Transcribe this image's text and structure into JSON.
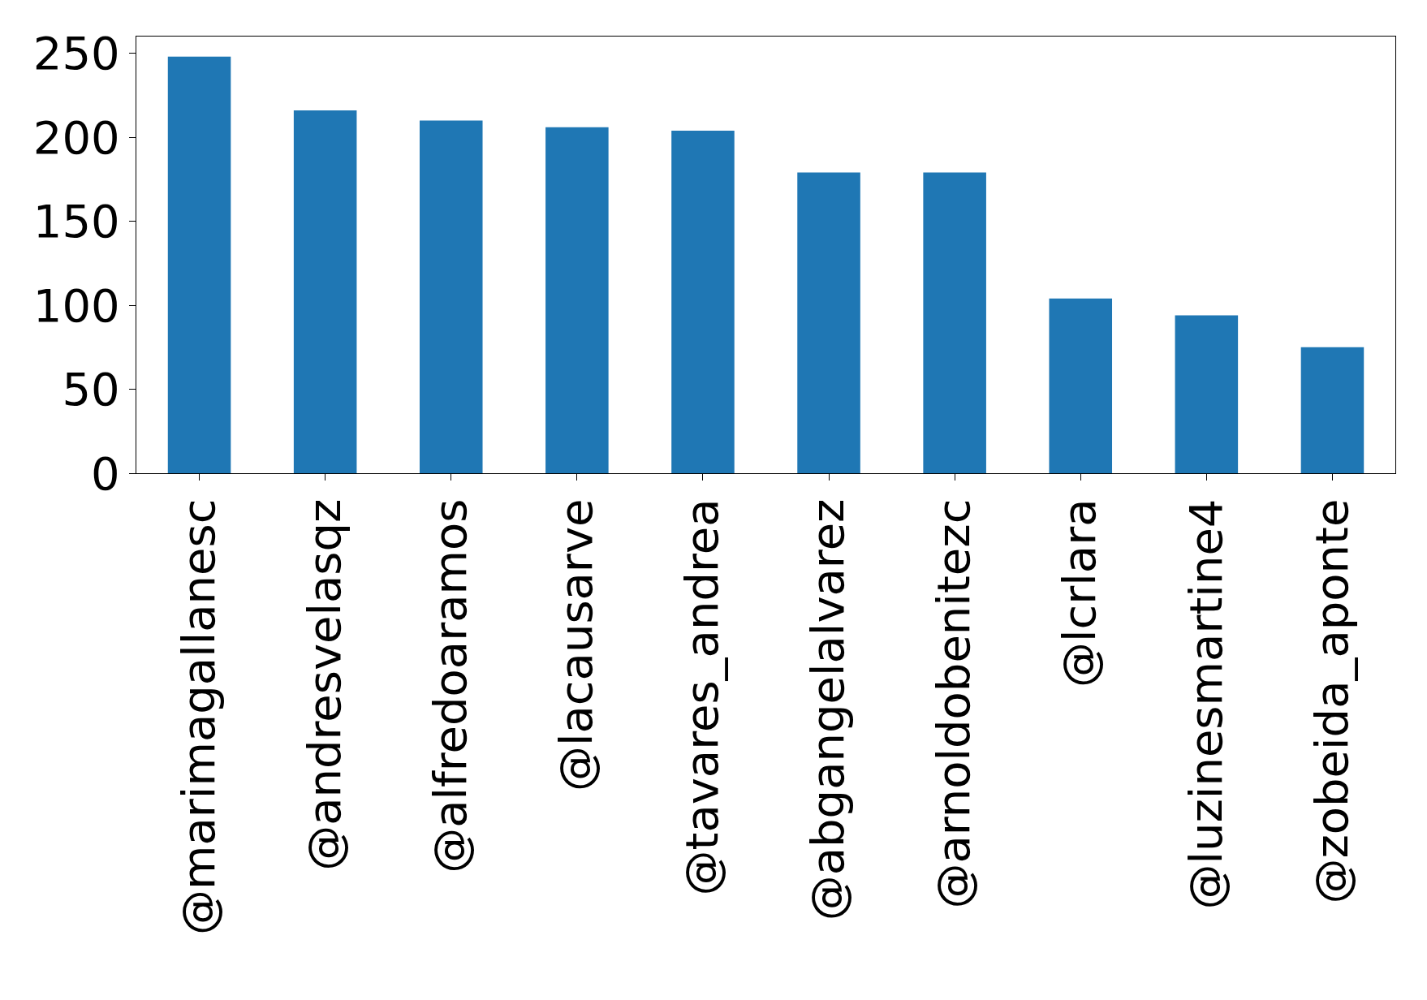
{
  "chart_data": {
    "type": "bar",
    "categories": [
      "@marimagallanesc",
      "@andresvelasqz",
      "@alfredoaramos",
      "@lacausarve",
      "@tavares_andrea",
      "@abgangelalvarez",
      "@arnoldobenitezc",
      "@lcrlara",
      "@luzinesmartine4",
      "@zobeida_aponte"
    ],
    "values": [
      248,
      216,
      210,
      206,
      204,
      179,
      179,
      104,
      94,
      75
    ],
    "color": "#1f77b4",
    "ylim": [
      0,
      260
    ],
    "yticks": [
      0,
      50,
      100,
      150,
      200,
      250
    ],
    "grid": false
  }
}
